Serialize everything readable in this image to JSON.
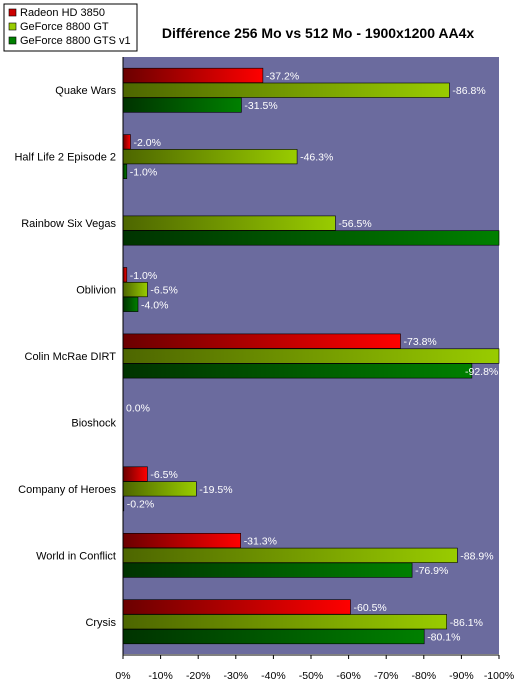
{
  "chart_data": {
    "type": "bar",
    "orientation": "horizontal",
    "title": "Différence 256 Mo vs 512 Mo - 1900x1200 AA4x",
    "categories": [
      "Quake Wars",
      "Half Life 2 Episode 2",
      "Rainbow Six Vegas",
      "Oblivion",
      "Colin McRae DIRT",
      "Bioshock",
      "Company of Heroes",
      "World in Conflict",
      "Crysis"
    ],
    "series": [
      {
        "name": "Radeon HD 3850",
        "color": "#ff0000",
        "values": [
          -37.2,
          -2.0,
          null,
          -1.0,
          -73.8,
          0.0,
          -6.5,
          -31.3,
          -60.5
        ],
        "labels": [
          "-37.2%",
          "-2.0%",
          "",
          "-1.0%",
          "-73.8%",
          "0.0%",
          "-6.5%",
          "-31.3%",
          "-60.5%"
        ]
      },
      {
        "name": "GeForce 8800 GT",
        "color": "#99cc00",
        "values": [
          -86.8,
          -46.3,
          -56.5,
          -6.5,
          -100.0,
          null,
          -19.5,
          -88.9,
          -86.1
        ],
        "labels": [
          "-86.8%",
          "-46.3%",
          "-56.5%",
          "-6.5%",
          "",
          "",
          "-19.5%",
          "-88.9%",
          "-86.1%"
        ]
      },
      {
        "name": "GeForce 8800 GTS v1",
        "color": "#008000",
        "values": [
          -31.5,
          -1.0,
          -100.0,
          -4.0,
          -92.8,
          null,
          -0.2,
          -76.9,
          -80.1
        ],
        "labels": [
          "-31.5%",
          "-1.0%",
          "",
          "-4.0%",
          "-92.8%",
          "",
          "-0.2%",
          "-76.9%",
          "-80.1%"
        ]
      }
    ],
    "xlim": [
      0,
      -100
    ],
    "xticks": [
      "0%",
      "-10%",
      "-20%",
      "-30%",
      "-40%",
      "-50%",
      "-60%",
      "-70%",
      "-80%",
      "-90%",
      "-100%"
    ],
    "plot_background": "#6b6b9e",
    "legend_position": "top-left",
    "grid": false
  }
}
